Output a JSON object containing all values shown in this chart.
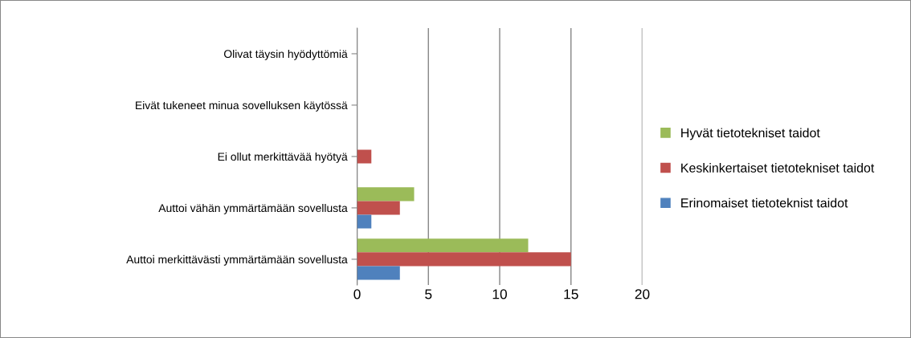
{
  "chart_data": {
    "type": "bar",
    "orientation": "horizontal",
    "categories": [
      "Olivat täysin hyödyttömiä",
      "Eivät tukeneet minua sovelluksen käytössä",
      "Ei ollut merkittävää hyötyä",
      "Auttoi vähän ymmärtämään sovellusta",
      "Auttoi merkittävästi ymmärtämään sovellusta"
    ],
    "series": [
      {
        "name": "Hyvät tietotekniset taidot",
        "color": "#9bbb59",
        "values": [
          0,
          0,
          0,
          4,
          12
        ]
      },
      {
        "name": "Keskinkertaiset tietotekniset taidot",
        "color": "#c0504d",
        "values": [
          0,
          0,
          1,
          3,
          15
        ]
      },
      {
        "name": "Erinomaiset tietoteknist taidot",
        "color": "#4f81bd",
        "values": [
          0,
          0,
          0,
          1,
          3
        ]
      }
    ],
    "xlim": [
      0,
      20
    ],
    "xticks": [
      0,
      5,
      10,
      15,
      20
    ],
    "grid": "x",
    "legend": "right"
  }
}
